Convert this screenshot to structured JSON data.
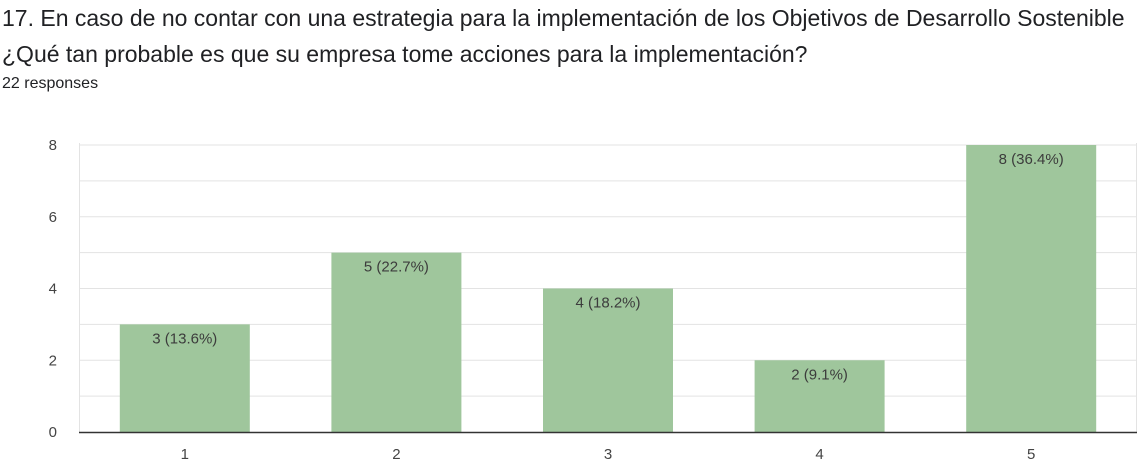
{
  "question": {
    "title": "17. En caso de no contar con una estrategia para la implementación de los Objetivos de Desarrollo Sostenible ¿Qué tan probable es que su empresa tome acciones para la implementación?",
    "responses": "22 responses"
  },
  "colors": {
    "bar": "#9fc69c",
    "grid": "#e3e3e3",
    "axis": "#333333"
  },
  "chart_data": {
    "type": "bar",
    "categories": [
      "1",
      "2",
      "3",
      "4",
      "5"
    ],
    "values": [
      3,
      5,
      4,
      2,
      8
    ],
    "data_labels": [
      "3 (13.6%)",
      "5 (22.7%)",
      "4 (18.2%)",
      "2 (9.1%)",
      "8 (36.4%)"
    ],
    "ylim": [
      0,
      8
    ],
    "yticks": [
      0,
      2,
      4,
      6,
      8
    ],
    "grid": true
  }
}
